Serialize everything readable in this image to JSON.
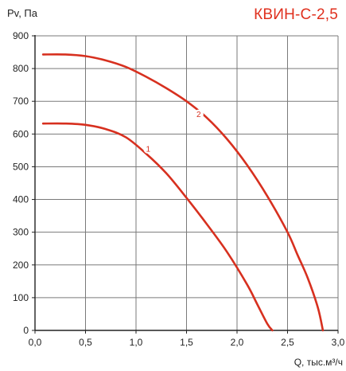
{
  "chart_data": {
    "type": "line",
    "title": "КВИН-С-2,5",
    "ylabel": "Pv, Па",
    "xlabel": "Q, тыс.м³/ч",
    "xlim": [
      0,
      3.0
    ],
    "ylim": [
      0,
      900
    ],
    "x_ticks": [
      "0,0",
      "0,5",
      "1,0",
      "1,5",
      "2,0",
      "2,5",
      "3,0"
    ],
    "y_ticks": [
      "0",
      "100",
      "200",
      "300",
      "400",
      "500",
      "600",
      "700",
      "800",
      "900"
    ],
    "grid": true,
    "series_color": "#d7301f",
    "series": [
      {
        "label": "1",
        "label_at": [
          1.12,
          555
        ],
        "x": [
          0.08,
          0.3,
          0.5,
          0.7,
          0.9,
          1.1,
          1.3,
          1.5,
          1.7,
          1.9,
          2.1,
          2.2,
          2.3,
          2.35
        ],
        "y": [
          632,
          632,
          628,
          615,
          590,
          540,
          480,
          405,
          325,
          240,
          140,
          80,
          20,
          0
        ]
      },
      {
        "label": "2",
        "label_at": [
          1.62,
          660
        ],
        "x": [
          0.08,
          0.3,
          0.5,
          0.7,
          0.9,
          1.1,
          1.3,
          1.5,
          1.7,
          1.9,
          2.1,
          2.3,
          2.5,
          2.6,
          2.7,
          2.8,
          2.85
        ],
        "y": [
          843,
          843,
          838,
          825,
          805,
          775,
          740,
          700,
          650,
          585,
          505,
          410,
          300,
          230,
          160,
          70,
          0
        ]
      }
    ]
  }
}
